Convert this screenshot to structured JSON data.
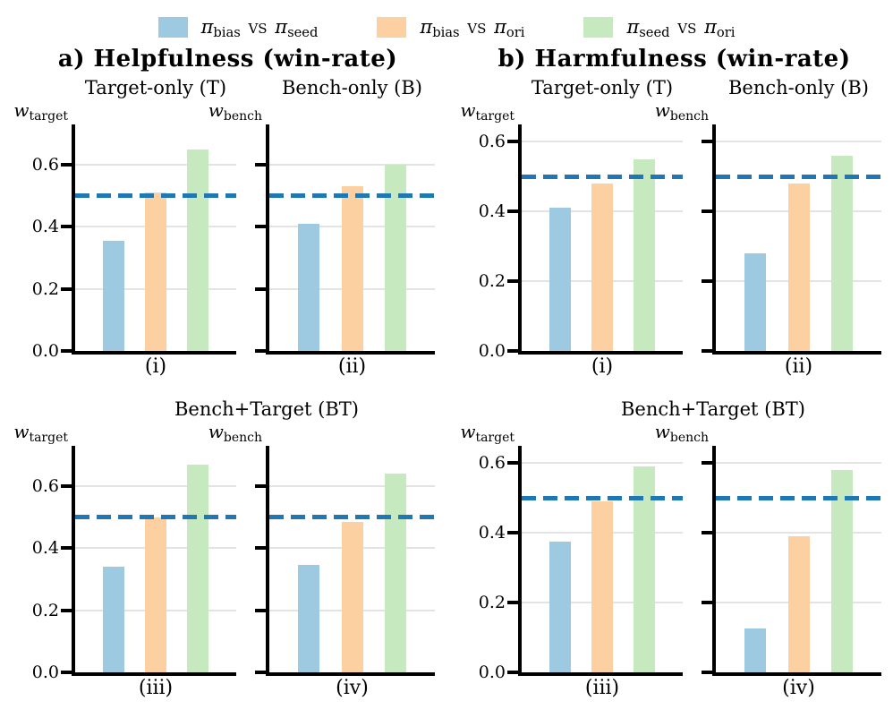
{
  "legend": {
    "pi": "π",
    "vs_text": "vs",
    "entries": [
      {
        "id": "bias-vs-seed",
        "left_sub": "bias",
        "right_sub": "seed",
        "color": "#9ecae1"
      },
      {
        "id": "bias-vs-ori",
        "left_sub": "bias",
        "right_sub": "ori",
        "color": "#fdd0a2"
      },
      {
        "id": "seed-vs-ori",
        "left_sub": "seed",
        "right_sub": "ori",
        "color": "#c7e9c0"
      }
    ]
  },
  "chart_data": {
    "type": "bar",
    "grid": true,
    "legend_position": "top",
    "series": [
      {
        "name": "π_bias vs π_seed",
        "color": "#9ecae1"
      },
      {
        "name": "π_bias vs π_ori",
        "color": "#fdd0a2"
      },
      {
        "name": "π_seed vs π_ori",
        "color": "#c7e9c0"
      }
    ],
    "baseline": {
      "value": 0.5,
      "style": "dashed",
      "color": "#1f77b4"
    },
    "yticks": [
      {
        "label": "0.0",
        "value": 0.0
      },
      {
        "label": "0.2",
        "value": 0.2
      },
      {
        "label": "0.4",
        "value": 0.4
      },
      {
        "label": "0.6",
        "value": 0.6
      }
    ],
    "panels": [
      {
        "id": "helpfulness",
        "title": "a) Helpfulness  (win-rate)",
        "ylim": [
          0,
          0.73
        ],
        "rows": [
          {
            "shared_title": "",
            "subplots": [
              {
                "title": "Target-only (T)",
                "ylabel_base": "w",
                "ylabel_sub": "target",
                "xlabel": "(i)",
                "ytick_labels": true,
                "values": [
                  0.355,
                  0.51,
                  0.65
                ]
              },
              {
                "title": "Bench-only (B)",
                "ylabel_base": "w",
                "ylabel_sub": "bench",
                "xlabel": "(ii)",
                "ytick_labels": false,
                "values": [
                  0.41,
                  0.53,
                  0.6
                ]
              }
            ]
          },
          {
            "shared_title": "Bench+Target (BT)",
            "subplots": [
              {
                "title": "",
                "ylabel_base": "w",
                "ylabel_sub": "target",
                "xlabel": "(iii)",
                "ytick_labels": true,
                "values": [
                  0.34,
                  0.5,
                  0.67
                ]
              },
              {
                "title": "",
                "ylabel_base": "w",
                "ylabel_sub": "bench",
                "xlabel": "(iv)",
                "ytick_labels": false,
                "values": [
                  0.345,
                  0.485,
                  0.64
                ]
              }
            ]
          }
        ]
      },
      {
        "id": "harmfulness",
        "title": "b) Harmfulness  (win-rate)",
        "ylim": [
          0,
          0.65
        ],
        "rows": [
          {
            "shared_title": "",
            "subplots": [
              {
                "title": "Target-only (T)",
                "ylabel_base": "w",
                "ylabel_sub": "target",
                "xlabel": "(i)",
                "ytick_labels": true,
                "values": [
                  0.41,
                  0.48,
                  0.55
                ]
              },
              {
                "title": "Bench-only (B)",
                "ylabel_base": "w",
                "ylabel_sub": "bench",
                "xlabel": "(ii)",
                "ytick_labels": false,
                "values": [
                  0.28,
                  0.48,
                  0.56
                ]
              }
            ]
          },
          {
            "shared_title": "Bench+Target (BT)",
            "subplots": [
              {
                "title": "",
                "ylabel_base": "w",
                "ylabel_sub": "target",
                "xlabel": "(iii)",
                "ytick_labels": true,
                "values": [
                  0.375,
                  0.49,
                  0.59
                ]
              },
              {
                "title": "",
                "ylabel_base": "w",
                "ylabel_sub": "bench",
                "xlabel": "(iv)",
                "ytick_labels": false,
                "values": [
                  0.125,
                  0.39,
                  0.58
                ]
              }
            ]
          }
        ]
      }
    ]
  }
}
